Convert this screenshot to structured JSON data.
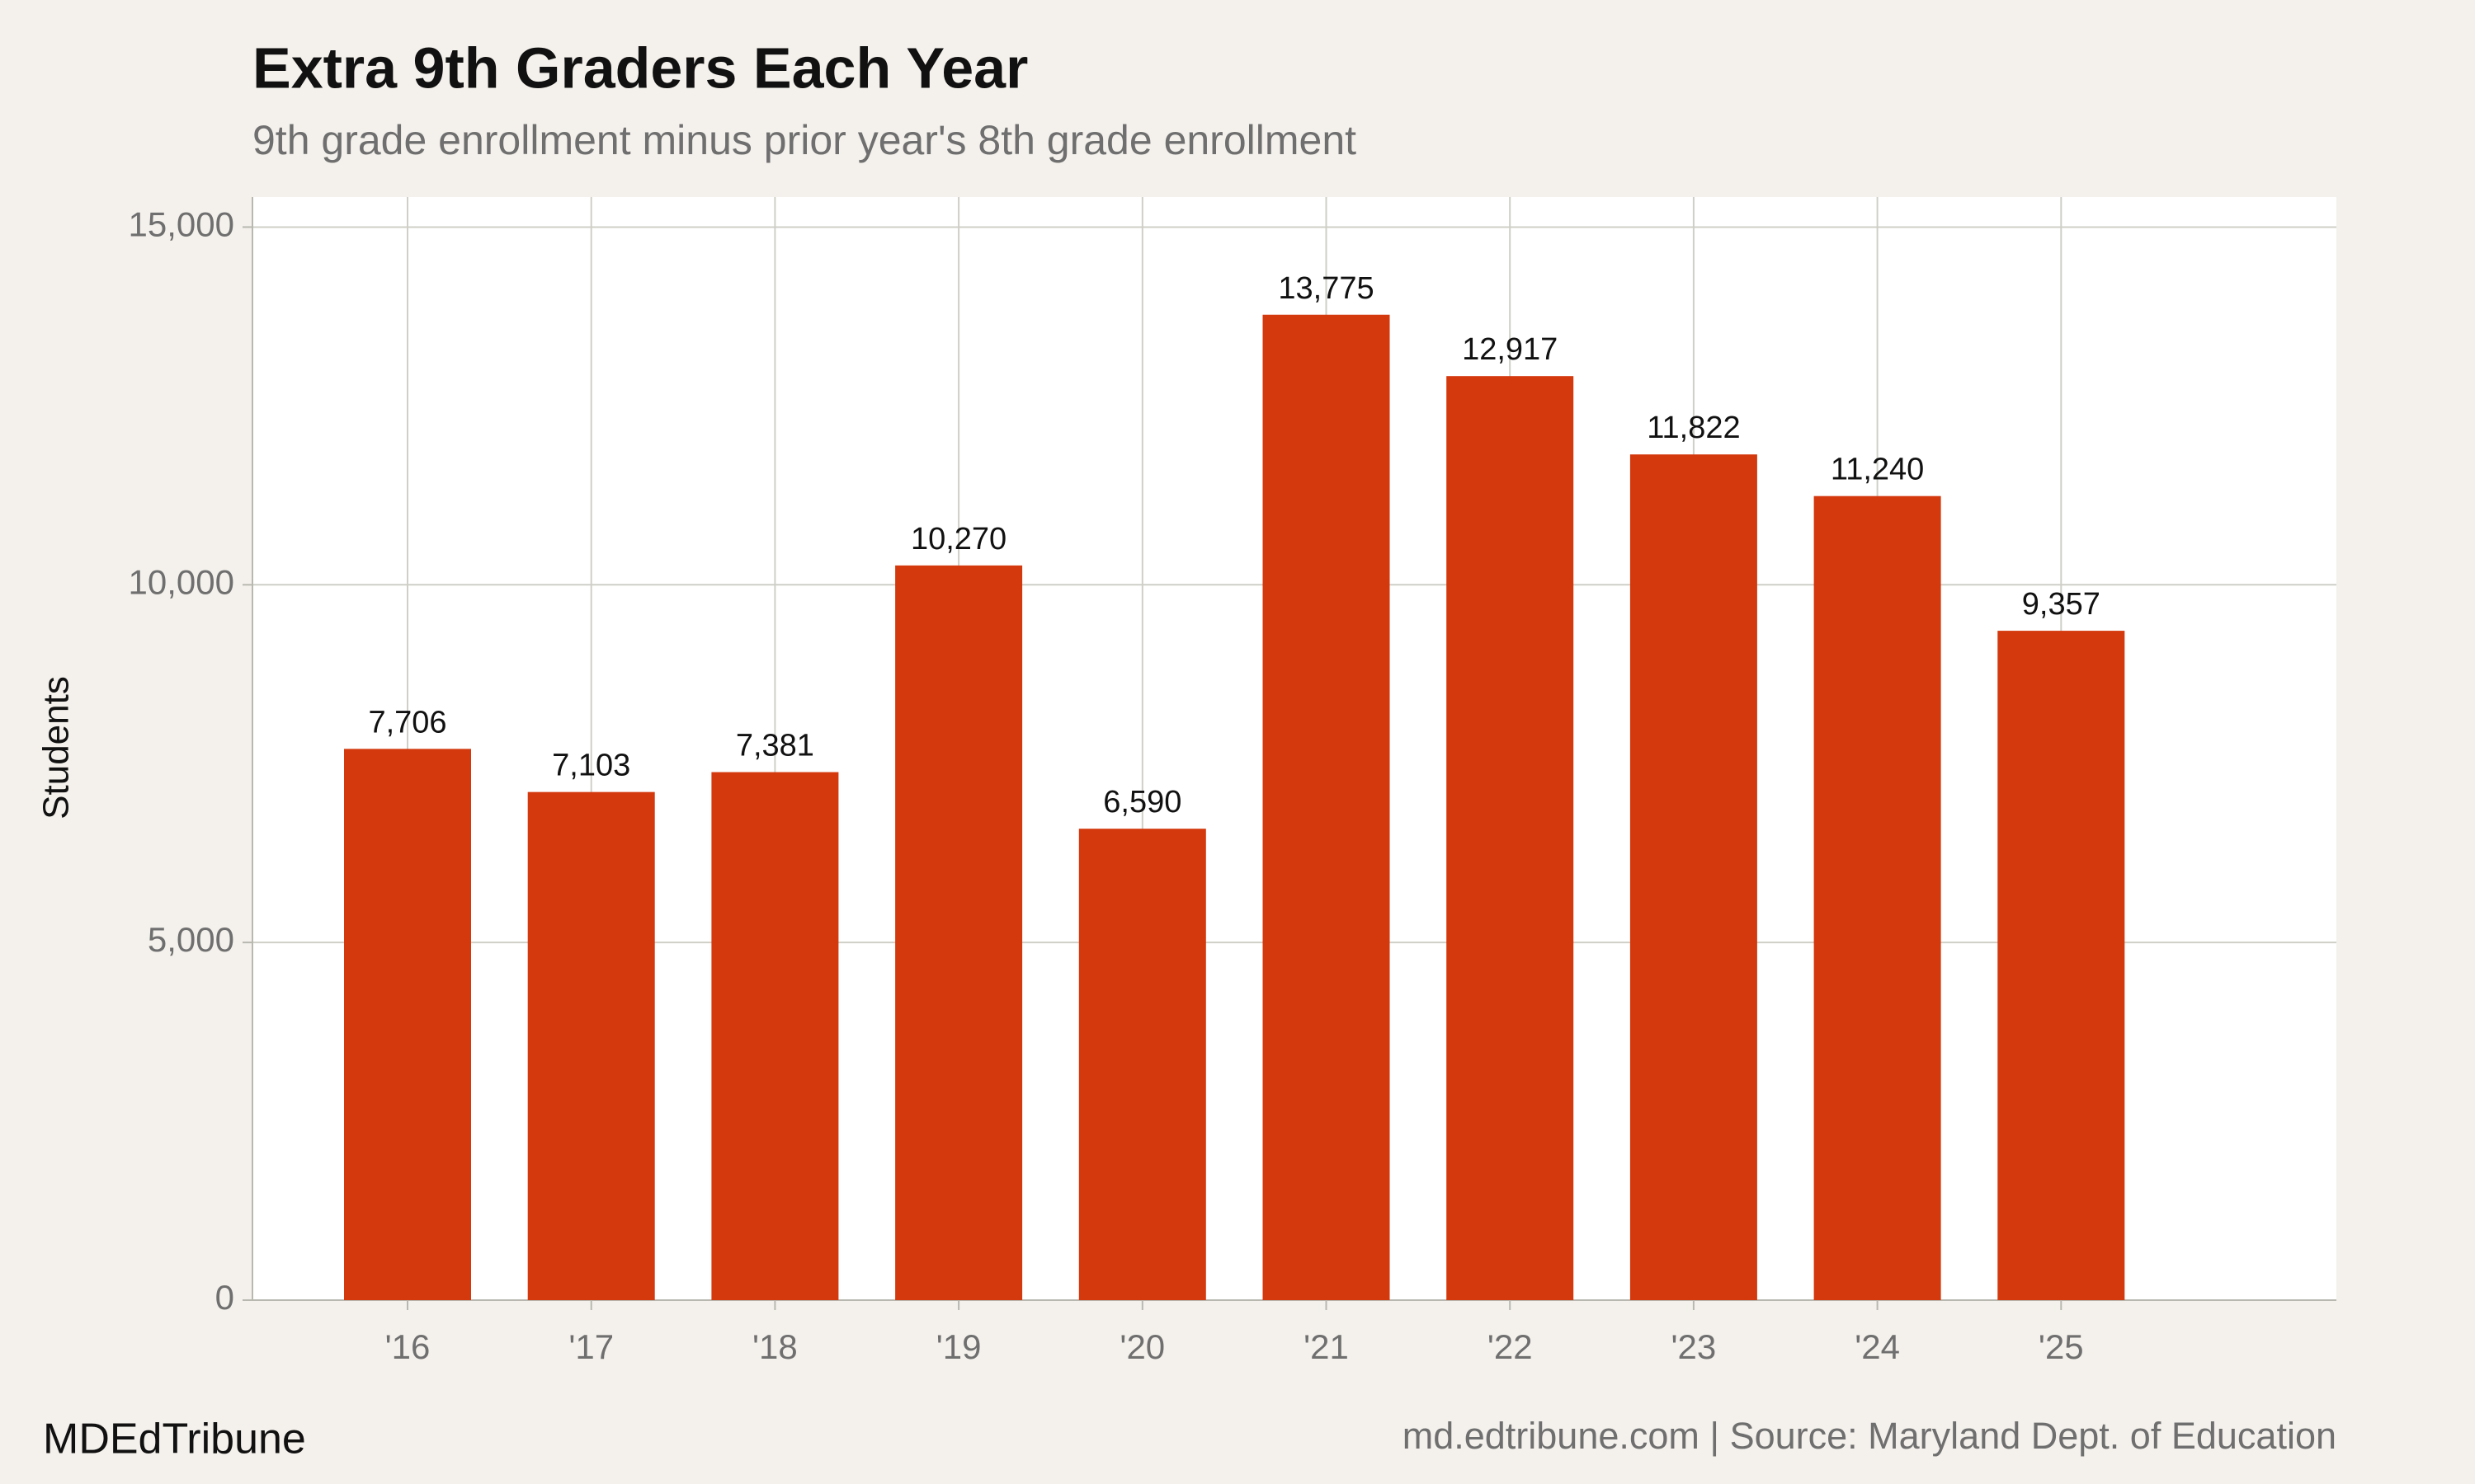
{
  "chart_data": {
    "type": "bar",
    "title": "Extra 9th Graders Each Year",
    "subtitle": "9th grade enrollment minus prior year's 8th grade enrollment",
    "y_label": "Students",
    "brand": "MDEdTribune",
    "source": "md.edtribune.com | Source: Maryland Dept. of Education",
    "categories": [
      "'16",
      "'17",
      "'18",
      "'19",
      "'20",
      "'21",
      "'22",
      "'23",
      "'24",
      "'25"
    ],
    "values": [
      7706,
      7103,
      7381,
      10270,
      6590,
      13775,
      12917,
      11822,
      11240,
      9357
    ],
    "value_labels": [
      "7,706",
      "7,103",
      "7,381",
      "10,270",
      "6,590",
      "13,775",
      "12,917",
      "11,822",
      "11,240",
      "9,357"
    ],
    "color": "#d4380d",
    "ylim": [
      0,
      15420
    ],
    "yticks": [
      0,
      {
        "value": 5000,
        "label": "5,000"
      },
      {
        "value": 10000,
        "label": "10,000"
      },
      {
        "value": 15000,
        "label": "15,000"
      }
    ],
    "grid": true
  }
}
